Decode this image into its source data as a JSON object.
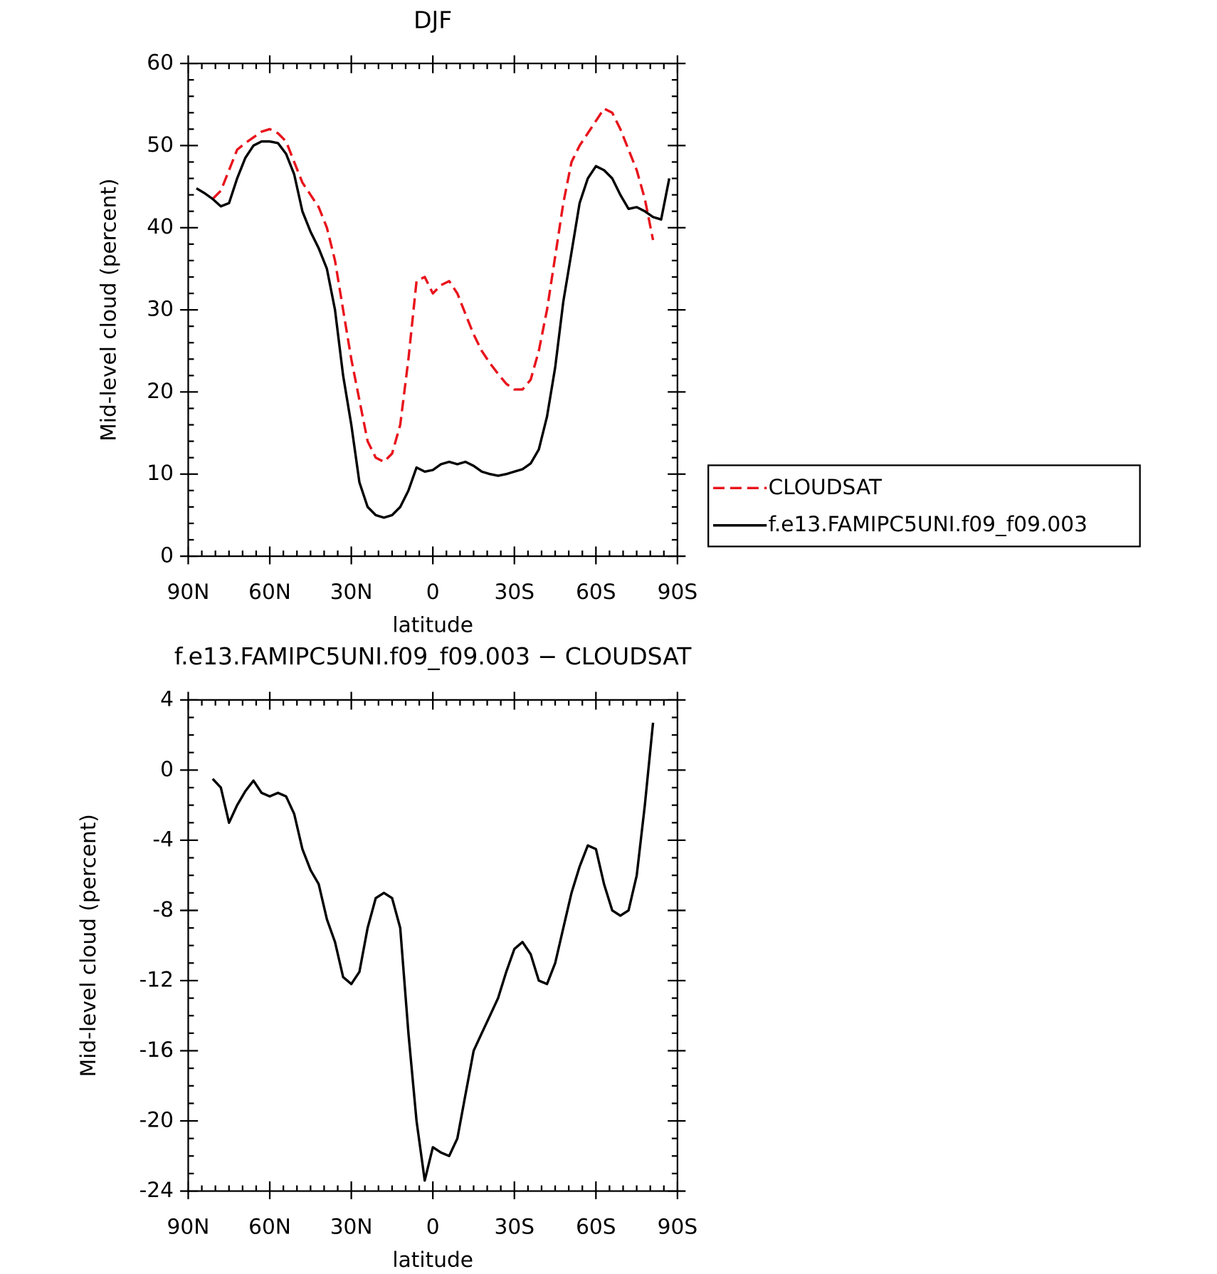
{
  "chart_data": [
    {
      "type": "line",
      "title": "DJF",
      "xlabel": "latitude",
      "ylabel": "Mid-level cloud (percent)",
      "x": [
        87,
        84,
        81,
        78,
        75,
        72,
        69,
        66,
        63,
        60,
        57,
        54,
        51,
        48,
        45,
        42,
        39,
        36,
        33,
        30,
        27,
        24,
        21,
        18,
        15,
        12,
        9,
        6,
        3,
        0,
        -3,
        -6,
        -9,
        -12,
        -15,
        -18,
        -21,
        -24,
        -27,
        -30,
        -33,
        -36,
        -39,
        -42,
        -45,
        -48,
        -51,
        -54,
        -57,
        -60,
        -63,
        -66,
        -69,
        -72,
        -75,
        -78,
        -81,
        -84,
        -87
      ],
      "series": [
        {
          "name": "CLOUDSAT",
          "color": "#e8141c",
          "linestyle": "dashed",
          "values": [
            null,
            null,
            43.5,
            44.5,
            47,
            49.5,
            50.3,
            51,
            51.7,
            52,
            51.5,
            50.5,
            48,
            45.5,
            44,
            42.5,
            40,
            36,
            30,
            24,
            19,
            14,
            12,
            11.5,
            12.5,
            16,
            24,
            33.5,
            34,
            32,
            33,
            33.5,
            32,
            29.5,
            27,
            25,
            23.5,
            22.2,
            21,
            20.3,
            20.3,
            21.5,
            25,
            30,
            36.5,
            43,
            48,
            50,
            51.5,
            53,
            54.5,
            54,
            52,
            49.5,
            47,
            43.5,
            38.5,
            null,
            null
          ]
        },
        {
          "name": "f.e13.FAMIPC5UNI.f09_f09.003",
          "color": "#000000",
          "linestyle": "solid",
          "values": [
            44.8,
            44.2,
            43.5,
            42.6,
            43,
            46,
            48.5,
            50,
            50.5,
            50.5,
            50.3,
            49,
            46.5,
            42,
            39.5,
            37.5,
            35,
            30,
            22,
            16,
            9,
            6,
            5,
            4.7,
            5,
            6,
            8,
            10.8,
            10.3,
            10.5,
            11.2,
            11.5,
            11.2,
            11.5,
            11,
            10.3,
            10,
            9.8,
            10,
            10.3,
            10.6,
            11.3,
            13,
            17,
            23,
            31,
            37,
            43,
            46,
            47.5,
            47,
            46,
            44,
            42.3,
            42.5,
            42,
            41.3,
            41,
            46
          ]
        }
      ],
      "xlim": [
        90,
        -90
      ],
      "xticks": [
        {
          "value": 90,
          "label": "90N"
        },
        {
          "value": 60,
          "label": "60N"
        },
        {
          "value": 30,
          "label": "30N"
        },
        0,
        {
          "value": -30,
          "label": "30S"
        },
        {
          "value": -60,
          "label": "60S"
        },
        {
          "value": -90,
          "label": "90S"
        }
      ],
      "ylim": [
        0,
        60
      ],
      "yticks": [
        0,
        10,
        20,
        30,
        40,
        50,
        60
      ],
      "legend": "right"
    },
    {
      "type": "line",
      "title": "f.e13.FAMIPC5UNI.f09_f09.003 − CLOUDSAT",
      "xlabel": "latitude",
      "ylabel": "Mid-level cloud (percent)",
      "x": [
        81,
        78,
        75,
        72,
        69,
        66,
        63,
        60,
        57,
        54,
        51,
        48,
        45,
        42,
        39,
        36,
        33,
        30,
        27,
        24,
        21,
        18,
        15,
        12,
        9,
        6,
        3,
        0,
        -3,
        -6,
        -9,
        -12,
        -15,
        -18,
        -21,
        -24,
        -27,
        -30,
        -33,
        -36,
        -39,
        -42,
        -45,
        -48,
        -51,
        -54,
        -57,
        -60,
        -63,
        -66,
        -69,
        -72,
        -75,
        -78,
        -81
      ],
      "values": [
        -0.5,
        -1,
        -3,
        -2,
        -1.2,
        -0.6,
        -1.3,
        -1.5,
        -1.3,
        -1.5,
        -2.5,
        -4.5,
        -5.7,
        -6.5,
        -8.5,
        -9.8,
        -11.8,
        -12.2,
        -11.5,
        -9,
        -7.3,
        -7,
        -7.3,
        -9,
        -15,
        -20,
        -23.4,
        -21.5,
        -21.8,
        -22,
        -21,
        -18.5,
        -16,
        -15,
        -14,
        -13,
        -11.5,
        -10.2,
        -9.8,
        -10.5,
        -12,
        -12.2,
        -11,
        -9,
        -7,
        -5.5,
        -4.3,
        -4.5,
        -6.5,
        -8,
        -8.3,
        -8,
        -6,
        -2,
        2.7
      ],
      "color": "#000000",
      "xlim": [
        90,
        -90
      ],
      "xticks": [
        {
          "value": 90,
          "label": "90N"
        },
        {
          "value": 60,
          "label": "60N"
        },
        {
          "value": 30,
          "label": "30N"
        },
        0,
        {
          "value": -30,
          "label": "30S"
        },
        {
          "value": -60,
          "label": "60S"
        },
        {
          "value": -90,
          "label": "90S"
        }
      ],
      "ylim": [
        -24,
        4
      ],
      "yticks": [
        -24,
        -20,
        -16,
        -12,
        -8,
        -4,
        0,
        4
      ]
    }
  ]
}
